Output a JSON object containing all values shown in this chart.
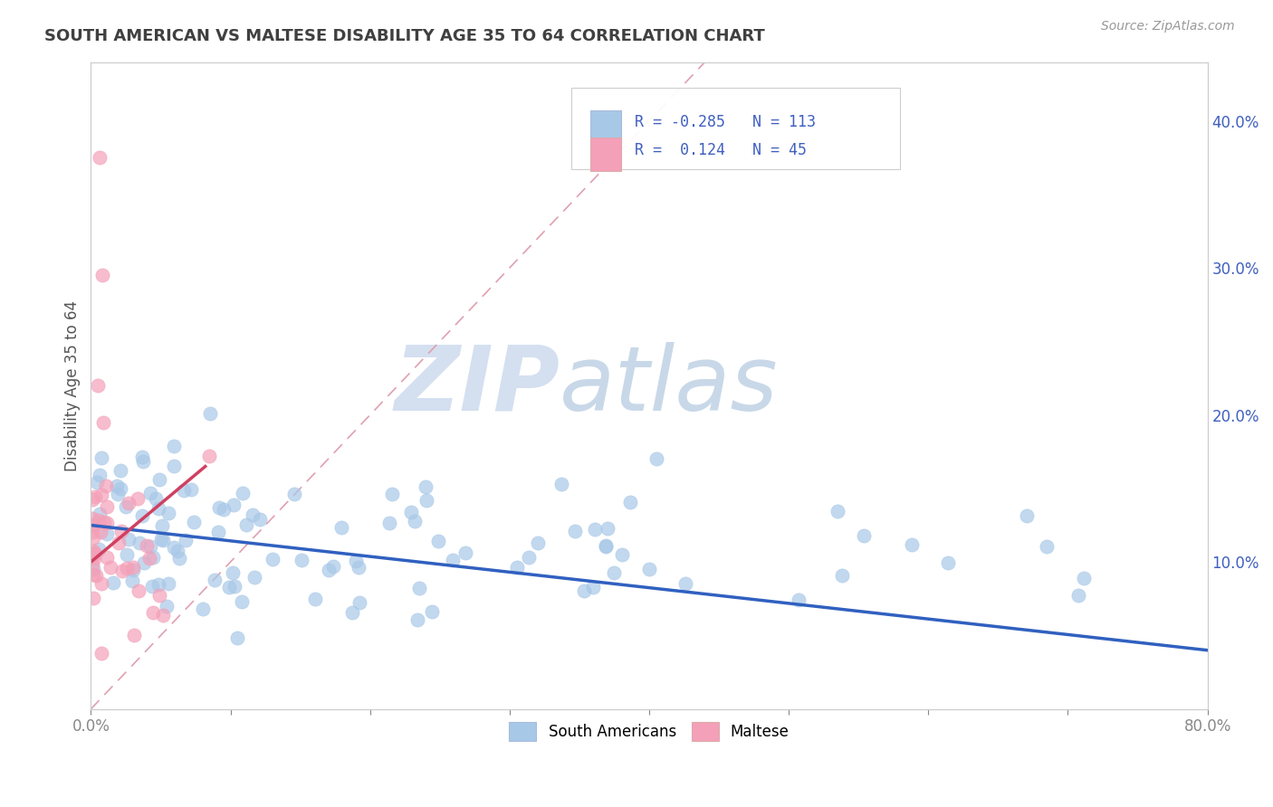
{
  "title": "SOUTH AMERICAN VS MALTESE DISABILITY AGE 35 TO 64 CORRELATION CHART",
  "source": "Source: ZipAtlas.com",
  "ylabel": "Disability Age 35 to 64",
  "xlim": [
    0.0,
    0.8
  ],
  "ylim": [
    0.0,
    0.44
  ],
  "xticks": [
    0.0,
    0.1,
    0.2,
    0.3,
    0.4,
    0.5,
    0.6,
    0.7,
    0.8
  ],
  "yticks_right": [
    0.1,
    0.2,
    0.3,
    0.4
  ],
  "ytick_right_labels": [
    "10.0%",
    "20.0%",
    "30.0%",
    "40.0%"
  ],
  "blue_R": -0.285,
  "blue_N": 113,
  "pink_R": 0.124,
  "pink_N": 45,
  "blue_color": "#a8c8e8",
  "pink_color": "#f4a0b8",
  "blue_line_color": "#3060c0",
  "pink_line_color": "#d04060",
  "diag_line_color": "#e0a0b0",
  "background_color": "#ffffff",
  "grid_color": "#dddddd",
  "title_color": "#404040",
  "legend_text_color": "#4060c0",
  "watermark_color": "#d4dff0",
  "watermark_color2": "#c8d8e8"
}
